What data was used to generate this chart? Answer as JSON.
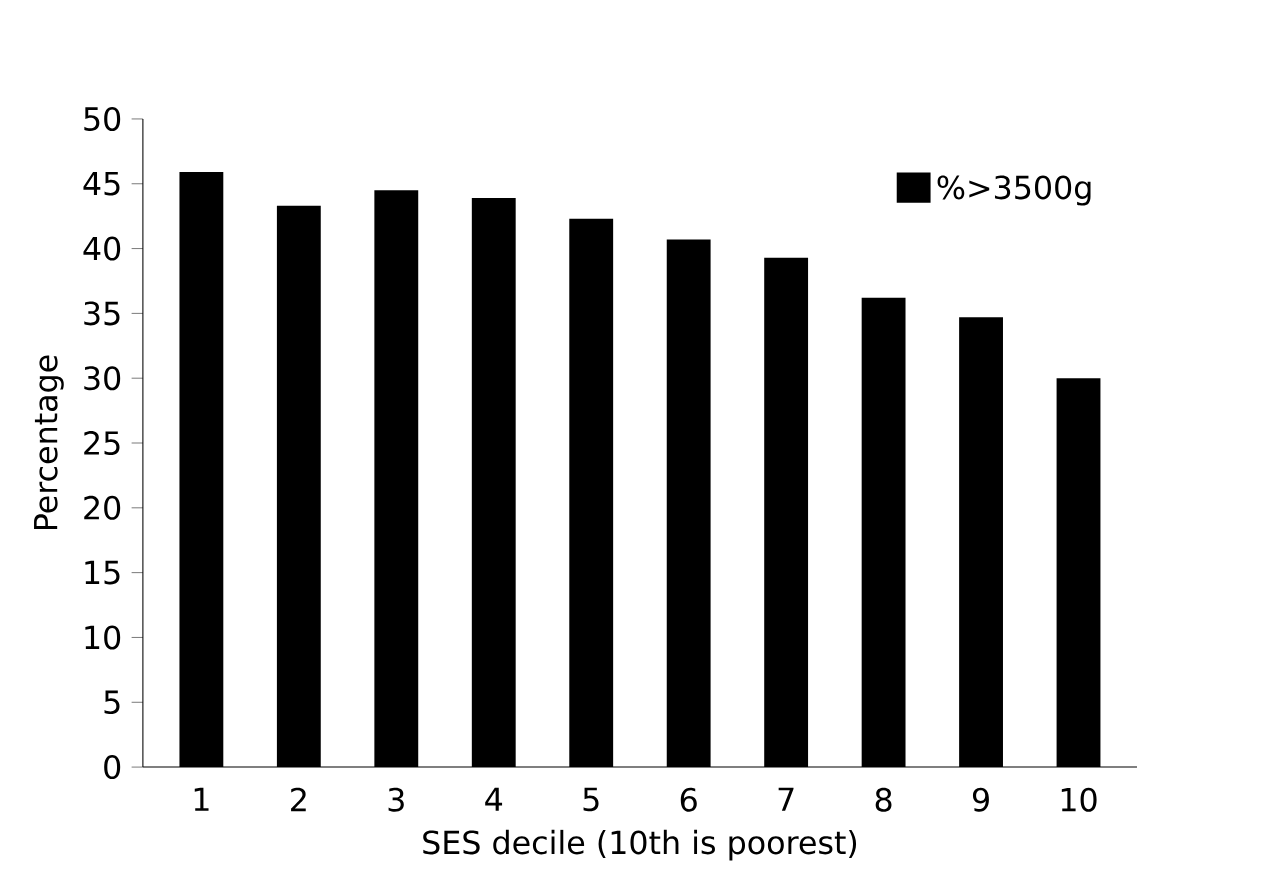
{
  "chart_data": {
    "type": "bar",
    "xlabel": "SES decile (10th is poorest)",
    "ylabel": "Percentage",
    "categories": [
      "1",
      "2",
      "3",
      "4",
      "5",
      "6",
      "7",
      "8",
      "9",
      "10"
    ],
    "series": [
      {
        "name": "%>3500g",
        "color": "#000000",
        "values": [
          45.9,
          43.3,
          44.5,
          43.9,
          42.3,
          40.7,
          39.3,
          36.2,
          34.7,
          30.0
        ]
      }
    ],
    "ylim": [
      0,
      50
    ],
    "yticks": [
      0,
      5,
      10,
      15,
      20,
      25,
      30,
      35,
      40,
      45,
      50
    ],
    "legend": "top right"
  }
}
